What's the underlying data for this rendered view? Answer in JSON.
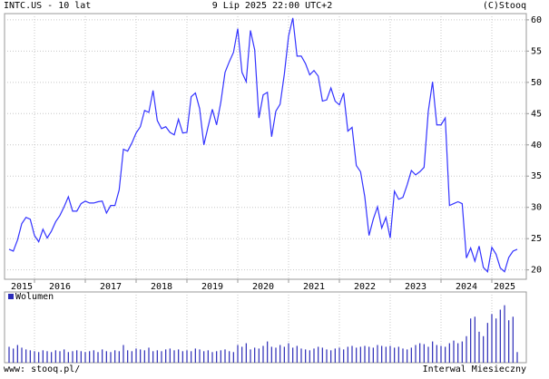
{
  "header": {
    "symbol": "INTC.US - 10 lat",
    "date": "9 Lip 2025 22:00 UTC+2",
    "copyright": "(C)Stooq"
  },
  "chart_data": [
    {
      "type": "line",
      "series": [
        {
          "name": "INTC.US",
          "color": "#3333ff",
          "values": [
            23.3,
            23,
            24.8,
            27.4,
            28.4,
            28.1,
            25.5,
            24.5,
            26.5,
            25.1,
            26.2,
            27.7,
            28.7,
            30.1,
            31.7,
            29.4,
            29.4,
            30.6,
            31,
            30.7,
            30.7,
            30.9,
            31,
            29.1,
            30.3,
            30.3,
            32.8,
            39.3,
            39,
            40.3,
            41.9,
            42.9,
            45.5,
            45.2,
            48.7,
            43.9,
            42.6,
            42.9,
            42,
            41.6,
            44.1,
            41.9,
            42,
            47.7,
            48.3,
            45.8,
            40,
            42.9,
            45.7,
            43.2,
            46.8,
            51.6,
            53.3,
            54.8,
            58.6,
            51.6,
            50.1,
            58.3,
            55.2,
            44.3,
            48,
            48.4,
            41.3,
            45.4,
            46.5,
            51.3,
            57.4,
            60.3,
            54.2,
            54.2,
            53,
            51.2,
            51.9,
            51,
            47,
            47.2,
            49.1,
            47,
            46.4,
            48.3,
            42.2,
            42.8,
            36.7,
            35.7,
            31.7,
            25.5,
            28.1,
            30.1,
            26.7,
            28.4,
            25.1,
            32.6,
            31.3,
            31.6,
            33.6,
            35.9,
            35.2,
            35.7,
            36.4,
            45.4,
            50.1,
            43.2,
            43.2,
            44.3,
            30.3,
            30.6,
            30.9,
            30.6,
            21.9,
            23.5,
            21.4,
            23.8,
            20.4,
            19.7,
            23.6,
            22.5,
            20.3,
            19.7,
            22,
            23,
            23.3
          ]
        }
      ],
      "year_labels": [
        "2015",
        "2016",
        "2017",
        "2018",
        "2019",
        "2020",
        "2021",
        "2022",
        "2023",
        "2024",
        "2025"
      ],
      "ylim": [
        18.5,
        61
      ],
      "yticks": [
        20,
        25,
        30,
        35,
        40,
        45,
        50,
        55,
        60
      ],
      "grid": true
    },
    {
      "type": "volume",
      "series": [
        {
          "name": "Wolumen",
          "color": "#2b2bb8",
          "values": [
            18,
            16,
            20,
            17,
            15,
            14,
            13,
            12,
            14,
            13,
            12,
            14,
            13,
            15,
            12,
            13,
            14,
            13,
            12,
            13,
            14,
            12,
            15,
            13,
            12,
            14,
            13,
            20,
            14,
            13,
            16,
            15,
            14,
            17,
            13,
            14,
            13,
            15,
            16,
            14,
            15,
            13,
            14,
            13,
            16,
            15,
            13,
            14,
            12,
            13,
            14,
            15,
            13,
            12,
            20,
            18,
            22,
            15,
            17,
            16,
            19,
            24,
            18,
            17,
            20,
            18,
            22,
            17,
            19,
            16,
            15,
            14,
            16,
            18,
            17,
            15,
            14,
            16,
            17,
            15,
            18,
            19,
            17,
            18,
            19,
            18,
            17,
            20,
            19,
            18,
            19,
            17,
            18,
            16,
            15,
            17,
            20,
            22,
            21,
            18,
            24,
            20,
            19,
            18,
            22,
            25,
            22,
            24,
            30,
            50,
            52,
            35,
            30,
            45,
            55,
            50,
            60,
            65,
            48,
            52,
            12
          ]
        }
      ],
      "ylim": [
        0,
        80
      ]
    }
  ],
  "footer": {
    "left": "www: stooq.pl/",
    "right": "Interwal Miesieczny"
  }
}
